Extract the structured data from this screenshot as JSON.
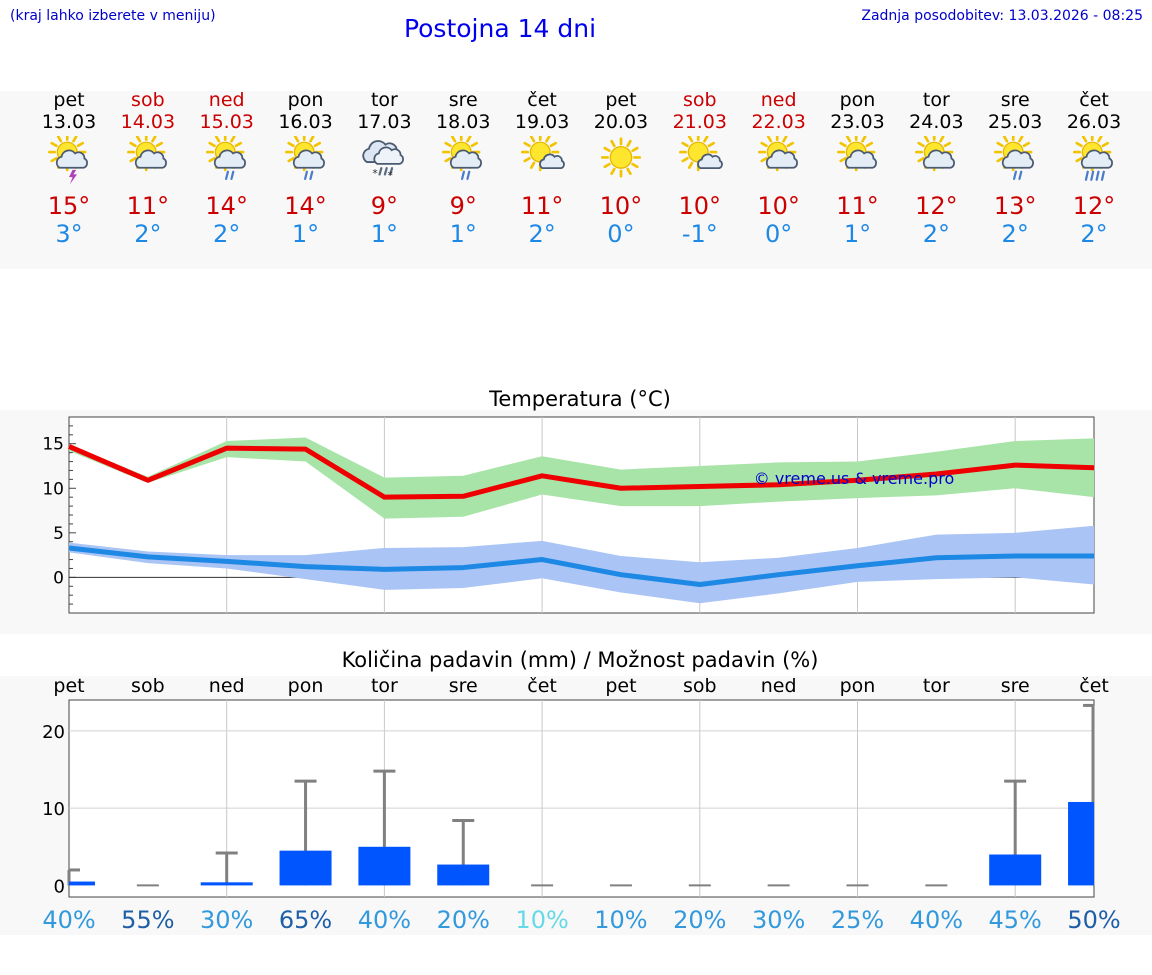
{
  "header": {
    "note": "(kraj lahko izberete v meniju)",
    "title": "Postojna 14 dni",
    "updated": "Zadnja posodobitev: 13.03.2026 - 08:25"
  },
  "days": [
    {
      "name": "pet",
      "date": "13.03",
      "weekend": false,
      "icon": "sun-cloud-thunder",
      "tmax": "15°",
      "tmin": "3°"
    },
    {
      "name": "sob",
      "date": "14.03",
      "weekend": true,
      "icon": "sun-cloud",
      "tmax": "11°",
      "tmin": "2°"
    },
    {
      "name": "ned",
      "date": "15.03",
      "weekend": true,
      "icon": "sun-cloud-rain",
      "tmax": "14°",
      "tmin": "2°"
    },
    {
      "name": "pon",
      "date": "16.03",
      "weekend": false,
      "icon": "sun-cloud-rain",
      "tmax": "14°",
      "tmin": "1°"
    },
    {
      "name": "tor",
      "date": "17.03",
      "weekend": false,
      "icon": "cloud-sleet",
      "tmax": "9°",
      "tmin": "1°"
    },
    {
      "name": "sre",
      "date": "18.03",
      "weekend": false,
      "icon": "sun-cloud-rain",
      "tmax": "9°",
      "tmin": "1°"
    },
    {
      "name": "čet",
      "date": "19.03",
      "weekend": false,
      "icon": "sun-small-cloud",
      "tmax": "11°",
      "tmin": "2°"
    },
    {
      "name": "pet",
      "date": "20.03",
      "weekend": false,
      "icon": "sun",
      "tmax": "10°",
      "tmin": "0°"
    },
    {
      "name": "sob",
      "date": "21.03",
      "weekend": true,
      "icon": "sun-small-cloud",
      "tmax": "10°",
      "tmin": "-1°"
    },
    {
      "name": "ned",
      "date": "22.03",
      "weekend": true,
      "icon": "sun-cloud",
      "tmax": "10°",
      "tmin": "0°"
    },
    {
      "name": "pon",
      "date": "23.03",
      "weekend": false,
      "icon": "sun-cloud",
      "tmax": "11°",
      "tmin": "1°"
    },
    {
      "name": "tor",
      "date": "24.03",
      "weekend": false,
      "icon": "sun-cloud",
      "tmax": "12°",
      "tmin": "2°"
    },
    {
      "name": "sre",
      "date": "25.03",
      "weekend": false,
      "icon": "sun-cloud-rain",
      "tmax": "13°",
      "tmin": "2°"
    },
    {
      "name": "čet",
      "date": "26.03",
      "weekend": false,
      "icon": "sun-cloud-heavy-rain",
      "tmax": "12°",
      "tmin": "2°"
    }
  ],
  "colors": {
    "max_line": "#ee0000",
    "max_band": "#a8e4a8",
    "min_line": "#1e88e5",
    "min_band": "#a9c4f5",
    "bar": "#0055ff",
    "whisker": "#808080",
    "watermark": "#0000cc"
  },
  "chart_data": [
    {
      "type": "line",
      "title": "Temperatura (°C)",
      "watermark": "© vreme.us & vreme.pro",
      "ylim": [
        -4,
        18
      ],
      "yticks": [
        0,
        5,
        10,
        15
      ],
      "x": [
        0,
        1,
        2,
        3,
        4,
        5,
        6,
        7,
        8,
        9,
        10,
        11,
        12,
        13
      ],
      "series": [
        {
          "name": "max",
          "values": [
            14.7,
            10.9,
            14.5,
            14.4,
            9.0,
            9.1,
            11.4,
            10.0,
            10.2,
            10.4,
            10.9,
            11.6,
            12.6,
            12.3
          ],
          "band_low": [
            14.2,
            10.6,
            13.5,
            13.0,
            6.6,
            6.8,
            9.3,
            8.0,
            8.0,
            8.5,
            8.9,
            9.2,
            10.0,
            9.0
          ],
          "band_high": [
            14.9,
            11.3,
            15.3,
            15.7,
            11.2,
            11.4,
            13.6,
            12.1,
            12.5,
            12.9,
            13.0,
            14.1,
            15.3,
            15.6
          ]
        },
        {
          "name": "min",
          "values": [
            3.3,
            2.3,
            1.8,
            1.2,
            0.9,
            1.1,
            2.0,
            0.3,
            -0.8,
            0.3,
            1.3,
            2.2,
            2.4,
            2.4
          ],
          "band_low": [
            2.8,
            1.6,
            1.0,
            -0.2,
            -1.4,
            -1.2,
            -0.1,
            -1.7,
            -2.9,
            -1.8,
            -0.5,
            -0.2,
            0.0,
            -0.8
          ],
          "band_high": [
            3.9,
            2.9,
            2.5,
            2.5,
            3.3,
            3.4,
            4.1,
            2.4,
            1.7,
            2.2,
            3.3,
            4.8,
            5.0,
            5.8
          ]
        }
      ]
    },
    {
      "type": "bar",
      "title": "Količina padavin (mm) / Možnost padavin (%)",
      "categories": [
        "pet",
        "sob",
        "ned",
        "pon",
        "tor",
        "sre",
        "čet",
        "pet",
        "sob",
        "ned",
        "pon",
        "tor",
        "sre",
        "čet"
      ],
      "ylim": [
        -1.5,
        24
      ],
      "yticks": [
        0,
        10,
        20
      ],
      "values": [
        0.5,
        0,
        0.4,
        4.5,
        5.0,
        2.7,
        0,
        0,
        0,
        0,
        0,
        0,
        4.0,
        10.8
      ],
      "whisker_high": [
        2.0,
        0,
        4.2,
        13.5,
        14.8,
        8.4,
        0,
        0,
        0,
        0,
        0,
        0,
        13.5,
        23.3
      ],
      "probability": [
        "40%",
        "55%",
        "30%",
        "65%",
        "40%",
        "20%",
        "10%",
        "10%",
        "20%",
        "30%",
        "25%",
        "40%",
        "45%",
        "50%"
      ],
      "probability_colors": [
        "#3399dd",
        "#1f5fa8",
        "#3399dd",
        "#1f5fa8",
        "#3399dd",
        "#3399dd",
        "#66d9e8",
        "#3399dd",
        "#3399dd",
        "#3399dd",
        "#3399dd",
        "#3399dd",
        "#3399dd",
        "#1f5fa8"
      ]
    }
  ]
}
